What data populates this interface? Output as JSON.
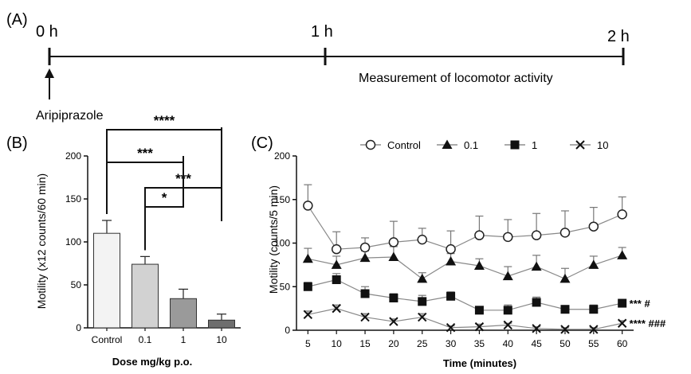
{
  "panel_a": {
    "label": "(A)",
    "times": [
      "0 h",
      "1 h",
      "2 h"
    ],
    "measurement_label": "Measurement of locomotor activity",
    "drug_label": "Aripiprazole"
  },
  "chart_data": [
    {
      "panel": "(B)",
      "type": "bar",
      "categories": [
        "Control",
        "0.1",
        "1",
        "10"
      ],
      "values": [
        110,
        74,
        34,
        9
      ],
      "errors": [
        15,
        9,
        11,
        7
      ],
      "xlabel": "Dose mg/kg p.o.",
      "ylabel": "Motility (x12 counts/60 min)",
      "ylim": [
        0,
        200
      ],
      "yticks": [
        0,
        50,
        100,
        150,
        200
      ],
      "bar_fills": [
        "#f3f3f3",
        "#d2d2d2",
        "#9a9a9a",
        "#6e6e6e"
      ],
      "significance": [
        {
          "from": "Control",
          "to": "10",
          "label": "****"
        },
        {
          "from": "Control",
          "to": "1",
          "label": "***"
        },
        {
          "from": "0.1",
          "to": "10",
          "label": "***"
        },
        {
          "from": "0.1",
          "to": "1",
          "label": "*"
        }
      ]
    },
    {
      "panel": "(C)",
      "type": "line",
      "x": [
        5,
        10,
        15,
        20,
        25,
        30,
        35,
        40,
        45,
        50,
        55,
        60
      ],
      "xlabel": "Time (minutes)",
      "ylabel": "Motility (counts/5 min)",
      "xlim": [
        3,
        62
      ],
      "ylim": [
        0,
        200
      ],
      "yticks": [
        0,
        50,
        100,
        150,
        200
      ],
      "series": [
        {
          "name": "Control",
          "marker": "open-circle",
          "values": [
            143,
            93,
            95,
            101,
            104,
            93,
            109,
            107,
            109,
            112,
            119,
            133
          ],
          "errors": [
            24,
            20,
            11,
            24,
            13,
            21,
            22,
            20,
            25,
            25,
            22,
            20
          ]
        },
        {
          "name": "0.1",
          "marker": "filled-triangle",
          "values": [
            82,
            75,
            83,
            84,
            59,
            79,
            74,
            62,
            73,
            59,
            75,
            86
          ],
          "errors": [
            12,
            10,
            8,
            12,
            7,
            9,
            8,
            11,
            13,
            12,
            10,
            9
          ]
        },
        {
          "name": "1",
          "marker": "filled-square",
          "values": [
            50,
            58,
            42,
            37,
            33,
            39,
            23,
            23,
            32,
            24,
            24,
            31
          ],
          "errors": [
            5,
            7,
            8,
            5,
            7,
            5,
            3,
            6,
            6,
            4,
            5,
            4
          ]
        },
        {
          "name": "10",
          "marker": "x",
          "values": [
            18,
            25,
            15,
            10,
            15,
            3,
            4,
            6,
            2,
            1,
            1,
            8
          ],
          "errors": [
            4,
            4,
            4,
            3,
            4,
            2,
            3,
            2,
            2,
            2,
            2,
            3
          ]
        }
      ],
      "annotations": [
        {
          "series": "1",
          "text": "*** #"
        },
        {
          "series": "10",
          "text": "**** ###"
        }
      ]
    }
  ]
}
